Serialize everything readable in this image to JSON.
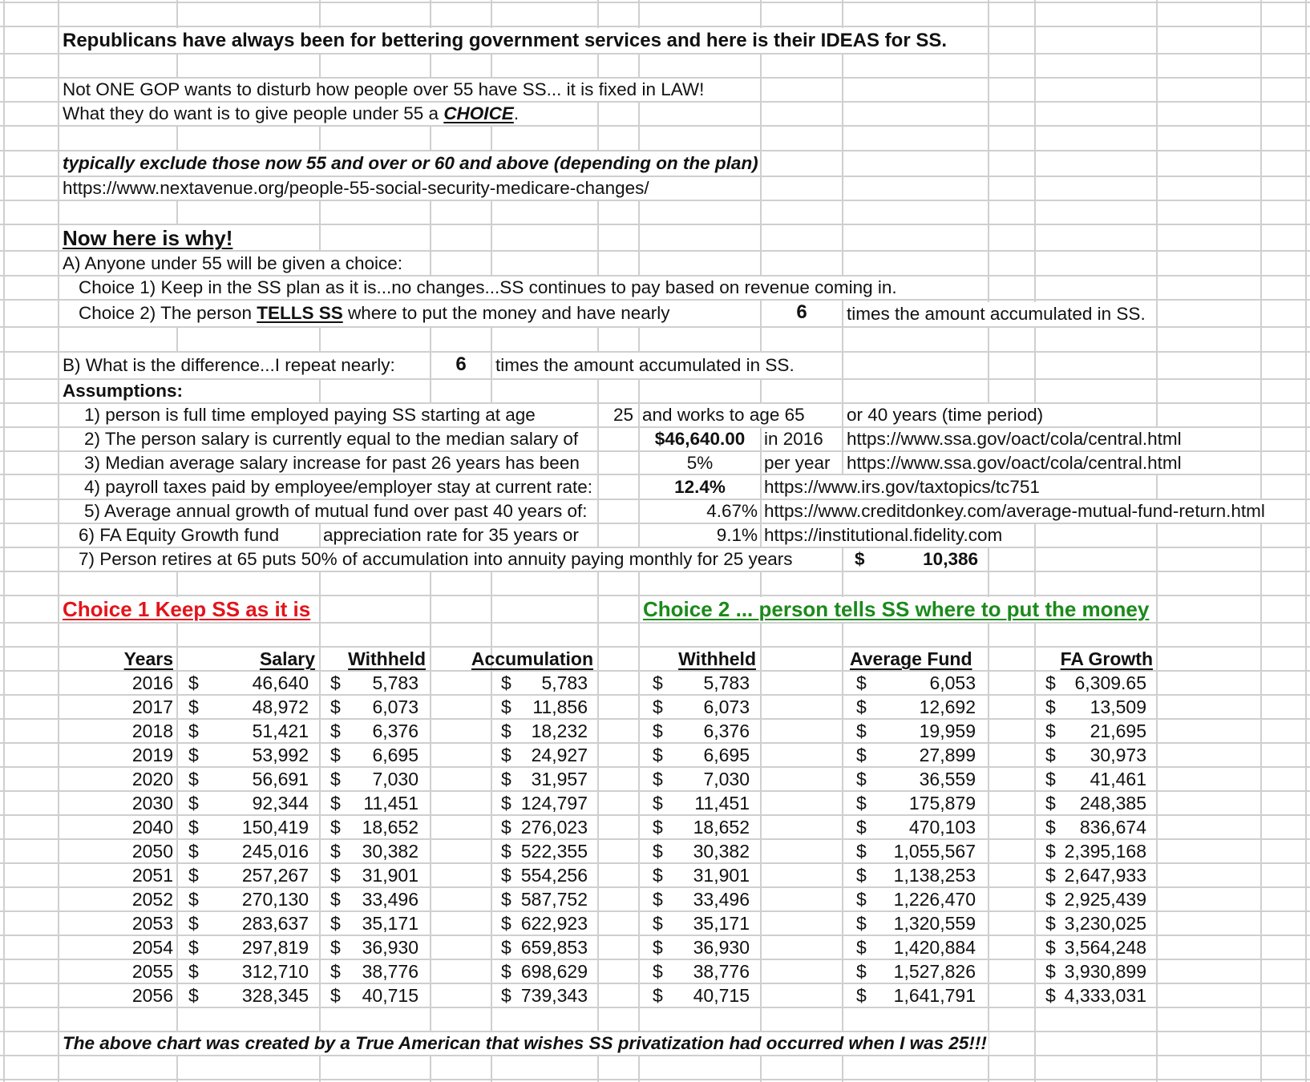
{
  "header": {
    "title": "Republicans have always been for bettering government services and here is their IDEAS for SS."
  },
  "intro": {
    "line1": "Not ONE GOP wants to disturb how people over 55 have SS... it is fixed in LAW!",
    "line2_prefix": "What they do want is to give people under 55 a ",
    "line2_emphasis": "CHOICE",
    "line2_suffix": "."
  },
  "note": {
    "italic": "typically exclude those now 55 and over or 60 and above (depending on the plan)",
    "url": "https://www.nextavenue.org/people-55-social-security-medicare-changes/"
  },
  "why": {
    "heading": "Now here is why!",
    "a_label": "A) Anyone under 55 will be given a choice:",
    "choice1": "Choice 1)  Keep in the SS plan as it is...no changes...SS continues to pay based on revenue coming in.",
    "choice2_prefix": "Choice 2)  The person ",
    "choice2_emphasis": "TELLS SS",
    "choice2_suffix": " where to put the money and have nearly",
    "choice2_multiple": "6",
    "choice2_tail": "times the amount accumulated in SS.",
    "b_label": "B) What is the difference...I repeat nearly:",
    "b_multiple": "6",
    "b_tail": "times the amount accumulated in SS."
  },
  "assumptions": {
    "heading": "Assumptions:",
    "a1": {
      "text": "1) person is full time employed paying SS starting at age",
      "value": "25",
      "mid": "and works to age 65",
      "note": "or 40 years (time period)"
    },
    "a2": {
      "text": "2) The person salary is currently equal to the median salary of",
      "value": "$46,640.00",
      "mid": "in 2016",
      "url": "https://www.ssa.gov/oact/cola/central.html"
    },
    "a3": {
      "text": "3) Median average salary increase for past 26 years has been",
      "value": "5%",
      "mid": "per year",
      "url": "https://www.ssa.gov/oact/cola/central.html"
    },
    "a4": {
      "text": "4) payroll taxes paid by employee/employer stay at current rate:",
      "value": "12.4%",
      "url": "https://www.irs.gov/taxtopics/tc751"
    },
    "a5": {
      "text": "5) Average annual growth of mutual fund over past 40 years of:",
      "value": "4.67%",
      "url": "https://www.creditdonkey.com/average-mutual-fund-return.html"
    },
    "a6": {
      "text": "6) FA Equity Growth fund",
      "text2": "appreciation rate for 35 years or",
      "value": "9.1%",
      "url": "https://institutional.fidelity.com"
    },
    "a7": {
      "text": "7) Person retires at 65 puts 50% of accumulation into annuity paying monthly for 25 years",
      "currency": "$",
      "value": "10,386"
    }
  },
  "choice1": {
    "heading": "Choice 1 Keep SS as it is",
    "columns": [
      "Years",
      "Salary",
      "Withheld",
      "Accumulation"
    ]
  },
  "choice2": {
    "heading": "Choice 2 ... person tells SS where to put the money",
    "columns": [
      "Withheld",
      "Average Fund",
      "FA Growth"
    ]
  },
  "table": {
    "currency": "$",
    "rows": [
      [
        "2016",
        "46,640",
        "5,783",
        "5,783",
        "5,783",
        "6,053",
        "6,309.65"
      ],
      [
        "2017",
        "48,972",
        "6,073",
        "11,856",
        "6,073",
        "12,692",
        "13,509"
      ],
      [
        "2018",
        "51,421",
        "6,376",
        "18,232",
        "6,376",
        "19,959",
        "21,695"
      ],
      [
        "2019",
        "53,992",
        "6,695",
        "24,927",
        "6,695",
        "27,899",
        "30,973"
      ],
      [
        "2020",
        "56,691",
        "7,030",
        "31,957",
        "7,030",
        "36,559",
        "41,461"
      ],
      [
        "2030",
        "92,344",
        "11,451",
        "124,797",
        "11,451",
        "175,879",
        "248,385"
      ],
      [
        "2040",
        "150,419",
        "18,652",
        "276,023",
        "18,652",
        "470,103",
        "836,674"
      ],
      [
        "2050",
        "245,016",
        "30,382",
        "522,355",
        "30,382",
        "1,055,567",
        "2,395,168"
      ],
      [
        "2051",
        "257,267",
        "31,901",
        "554,256",
        "31,901",
        "1,138,253",
        "2,647,933"
      ],
      [
        "2052",
        "270,130",
        "33,496",
        "587,752",
        "33,496",
        "1,226,470",
        "2,925,439"
      ],
      [
        "2053",
        "283,637",
        "35,171",
        "622,923",
        "35,171",
        "1,320,559",
        "3,230,025"
      ],
      [
        "2054",
        "297,819",
        "36,930",
        "659,853",
        "36,930",
        "1,420,884",
        "3,564,248"
      ],
      [
        "2055",
        "312,710",
        "38,776",
        "698,629",
        "38,776",
        "1,527,826",
        "3,930,899"
      ],
      [
        "2056",
        "328,345",
        "40,715",
        "739,343",
        "40,715",
        "1,641,791",
        "4,333,031"
      ]
    ]
  },
  "footer": "The above chart was created by a True American that wishes SS privatization had occurred when I was 25!!!",
  "colors": {
    "choice1_heading": "#e3141b",
    "choice2_heading": "#1b8a1b",
    "gridline": "#cfcfcf",
    "text": "#111111"
  }
}
